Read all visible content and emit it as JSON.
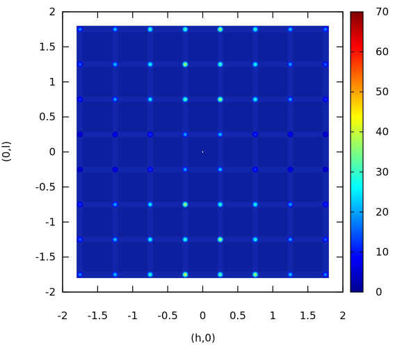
{
  "chart_data": {
    "type": "heatmap",
    "title": "",
    "xlabel": "(h,0)",
    "ylabel": "(0,l)",
    "xlim": [
      -2,
      2
    ],
    "ylim": [
      -2,
      2
    ],
    "data_extent": {
      "x": [
        -1.8,
        1.8
      ],
      "y": [
        -1.8,
        1.8
      ]
    },
    "x_ticks": [
      "-2",
      "-1.5",
      "-1",
      "-0.5",
      "0",
      "0.5",
      "1",
      "1.5",
      "2"
    ],
    "y_ticks": [
      "2",
      "1.5",
      "1",
      "0.5",
      "0",
      "-0.5",
      "-1",
      "-1.5",
      "-2"
    ],
    "colorbar": {
      "range": [
        0,
        70
      ],
      "ticks": [
        "70",
        "60",
        "50",
        "40",
        "30",
        "20",
        "10",
        "0"
      ],
      "colormap": "jet",
      "stops": [
        "#00008f",
        "#0000ff",
        "#0080ff",
        "#00ffff",
        "#80ff80",
        "#ffff00",
        "#ff8000",
        "#ff0000",
        "#800000"
      ]
    },
    "background_color": "#0d1f9e",
    "grid": false,
    "peaks": {
      "h": [
        -1.75,
        -1.25,
        -0.75,
        -0.25,
        0.25,
        0.75,
        1.25,
        1.75
      ],
      "l": [
        1.75,
        1.25,
        0.75,
        0.25,
        -0.25,
        -0.75,
        -1.25,
        -1.75
      ],
      "intensity": [
        [
          18,
          22,
          30,
          32,
          38,
          30,
          22,
          18
        ],
        [
          15,
          22,
          28,
          38,
          32,
          28,
          20,
          15
        ],
        [
          12,
          20,
          26,
          32,
          38,
          28,
          20,
          12
        ],
        [
          6,
          8,
          12,
          20,
          22,
          12,
          8,
          6
        ],
        [
          6,
          8,
          12,
          20,
          22,
          12,
          8,
          6
        ],
        [
          12,
          20,
          26,
          38,
          30,
          28,
          20,
          12
        ],
        [
          15,
          22,
          28,
          30,
          38,
          28,
          20,
          15
        ],
        [
          18,
          22,
          30,
          40,
          32,
          38,
          22,
          18
        ]
      ]
    }
  }
}
